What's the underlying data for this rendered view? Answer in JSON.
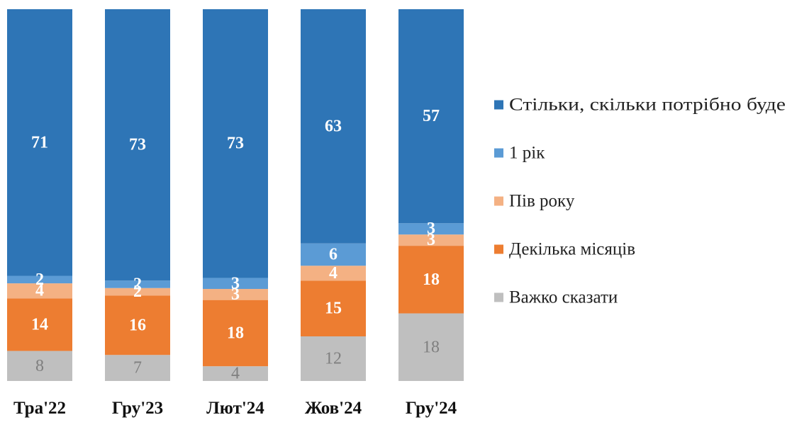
{
  "chart_data": {
    "type": "bar",
    "stacked": true,
    "percent": true,
    "categories": [
      "Тра'22",
      "Гру'23",
      "Лют'24",
      "Жов'24",
      "Гру'24"
    ],
    "series": [
      {
        "name": "Важко сказати",
        "color": "#bfbfbf",
        "label_color": "#7f7f7f",
        "label_bold": false,
        "values": [
          8,
          7,
          4,
          12,
          18
        ]
      },
      {
        "name": "Декілька місяців",
        "color": "#ed7d31",
        "label_color": "#ffffff",
        "label_bold": true,
        "values": [
          14,
          16,
          18,
          15,
          18
        ]
      },
      {
        "name": "Пів року",
        "color": "#f4b183",
        "label_color": "#ffffff",
        "label_bold": true,
        "values": [
          4,
          2,
          3,
          4,
          3
        ]
      },
      {
        "name": "1 рік",
        "color": "#5b9bd5",
        "label_color": "#ffffff",
        "label_bold": true,
        "values": [
          2,
          2,
          3,
          6,
          3
        ]
      },
      {
        "name": "Стільки, скільки потрібно буде",
        "color": "#2e75b6",
        "label_color": "#ffffff",
        "label_bold": true,
        "values": [
          71,
          73,
          73,
          63,
          57
        ]
      }
    ],
    "legend_order": [
      "Стільки, скільки потрібно буде",
      "1 рік",
      "Пів року",
      "Декілька місяців",
      "Важко сказати"
    ],
    "legend_position": "right",
    "grid": false
  }
}
